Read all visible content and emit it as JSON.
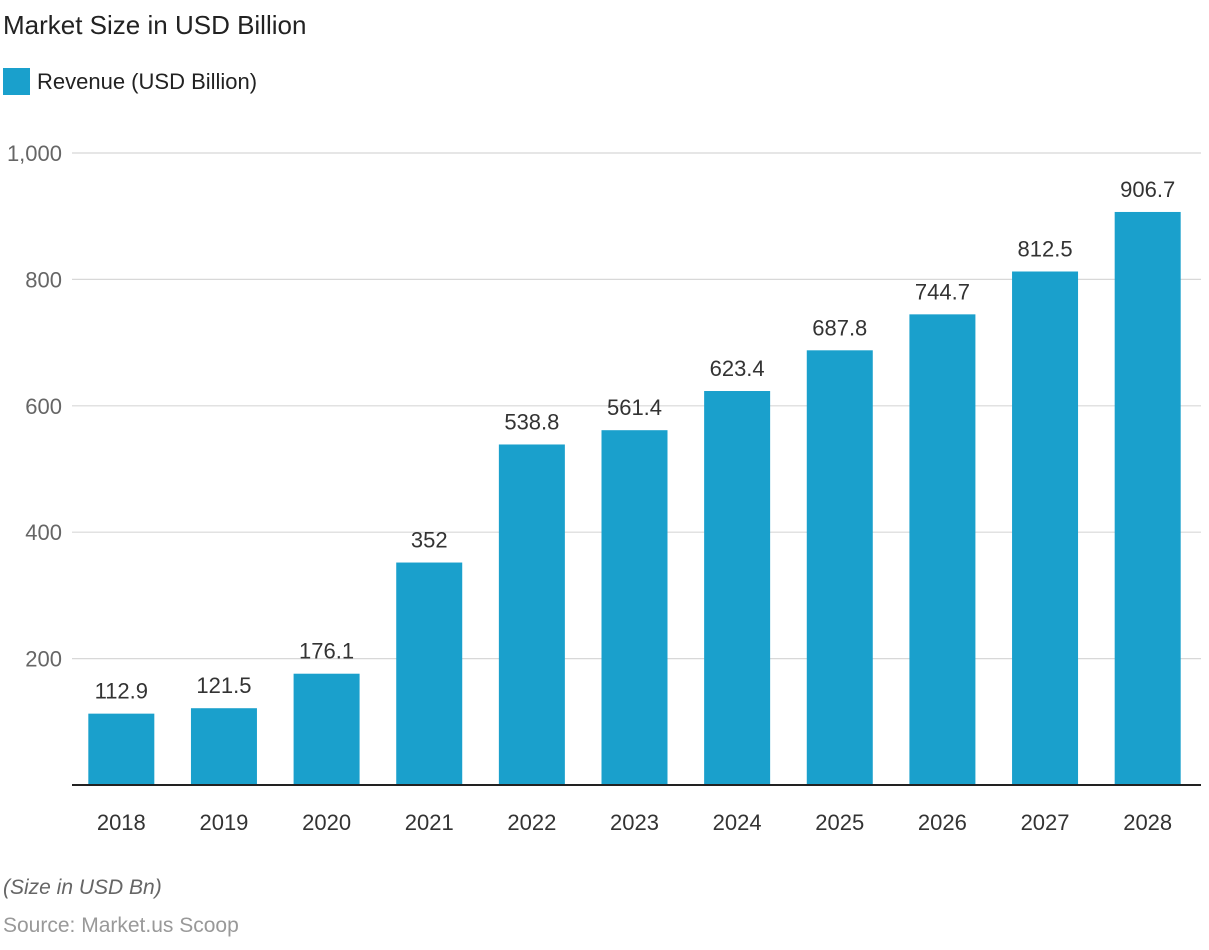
{
  "title": "Market Size in USD Billion",
  "legend": {
    "label": "Revenue (USD Billion)"
  },
  "note": "(Size in USD Bn)",
  "source": "Source: Market.us Scoop",
  "colors": {
    "bar": "#1aa0cc",
    "grid": "#d8d8d8",
    "axis": "#222222",
    "tick_text": "#666666",
    "label_text": "#333333"
  },
  "chart_data": {
    "type": "bar",
    "title": "Market Size in USD Billion",
    "categories": [
      "2018",
      "2019",
      "2020",
      "2021",
      "2022",
      "2023",
      "2024",
      "2025",
      "2026",
      "2027",
      "2028"
    ],
    "series": [
      {
        "name": "Revenue (USD Billion)",
        "values": [
          112.9,
          121.5,
          176.1,
          352,
          538.8,
          561.4,
          623.4,
          687.8,
          744.7,
          812.5,
          906.7
        ]
      }
    ],
    "data_labels": [
      "112.9",
      "121.5",
      "176.1",
      "352",
      "538.8",
      "561.4",
      "623.4",
      "687.8",
      "744.7",
      "812.5",
      "906.7"
    ],
    "y_ticks": [
      200,
      400,
      600,
      800,
      1000
    ],
    "y_tick_labels": [
      "200",
      "400",
      "600",
      "800",
      "1,000"
    ],
    "ylim": [
      0,
      1000
    ],
    "xlabel": "",
    "ylabel": "",
    "grid": true,
    "legend_position": "top-left"
  }
}
